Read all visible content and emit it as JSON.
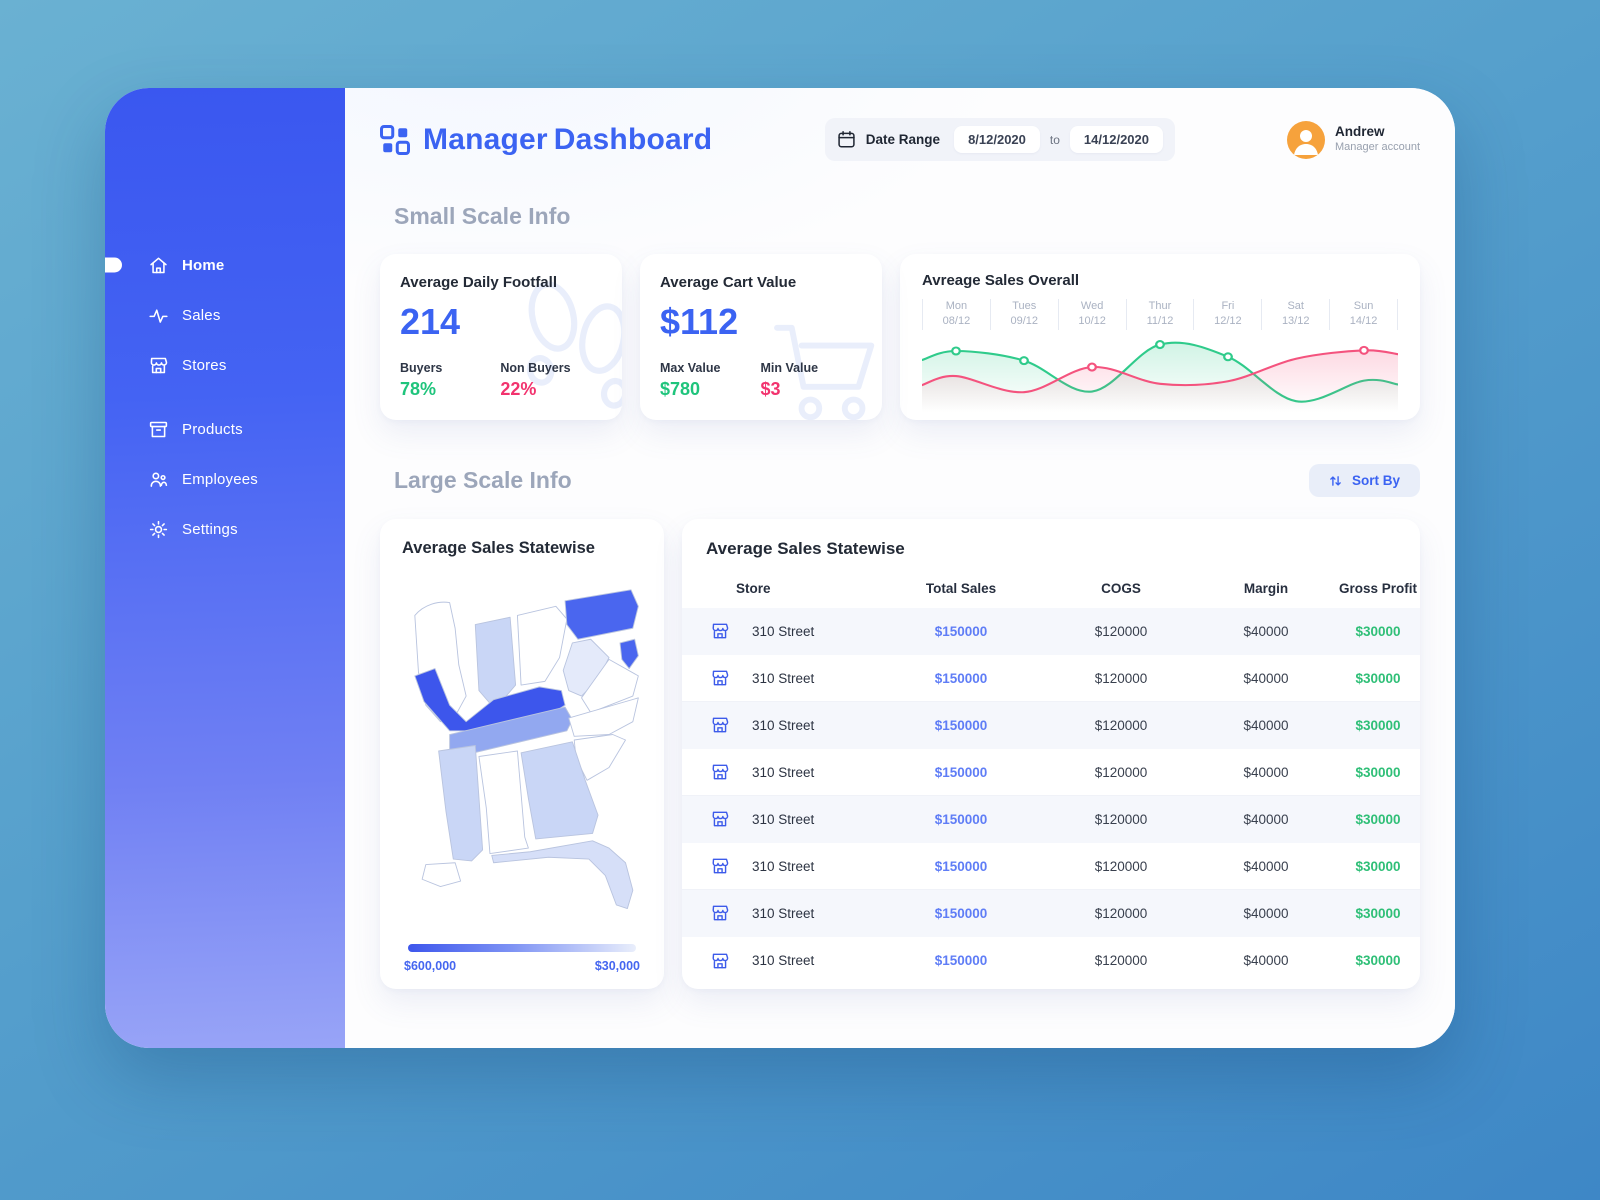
{
  "app": {
    "title_part1": "Manager",
    "title_part2": "Dashboard"
  },
  "header": {
    "date_range": {
      "label": "Date Range",
      "start": "8/12/2020",
      "separator": "to",
      "end": "14/12/2020"
    },
    "user": {
      "name": "Andrew",
      "role": "Manager account"
    }
  },
  "sidebar": {
    "items": [
      {
        "label": "Home",
        "active": true
      },
      {
        "label": "Sales",
        "active": false
      },
      {
        "label": "Stores",
        "active": false
      },
      {
        "label": "Products",
        "active": false
      },
      {
        "label": "Employees",
        "active": false
      },
      {
        "label": "Settings",
        "active": false
      }
    ]
  },
  "small_scale": {
    "title": "Small Scale Info",
    "footfall_card": {
      "title": "Average Daily Footfall",
      "value": "214",
      "buyers_label": "Buyers",
      "buyers_value": "78%",
      "non_buyers_label": "Non Buyers",
      "non_buyers_value": "22%"
    },
    "cart_card": {
      "title": "Average Cart Value",
      "value": "$112",
      "max_label": "Max Value",
      "max_value": "$780",
      "min_label": "Min Value",
      "min_value": "$3"
    }
  },
  "chart_data": {
    "type": "line",
    "title": "Avreage Sales Overall",
    "x": [
      "Mon",
      "Tues",
      "Wed",
      "Thur",
      "Fri",
      "Sat",
      "Sun"
    ],
    "x_dates": [
      "08/12",
      "09/12",
      "10/12",
      "11/12",
      "12/12",
      "13/12",
      "14/12"
    ],
    "ylim": [
      0,
      100
    ],
    "grid": false,
    "legend": "none",
    "series": [
      {
        "name": "sales-green",
        "color": "#2fcb8b",
        "values": [
          84,
          69,
          21,
          94,
          75,
          6,
          38
        ],
        "marker_indices": [
          0,
          1,
          3,
          4
        ]
      },
      {
        "name": "sales-pink",
        "color": "#f4537e",
        "values": [
          45,
          20,
          59,
          33,
          37,
          72,
          85
        ],
        "marker_indices": [
          2,
          6
        ]
      }
    ]
  },
  "large_scale": {
    "title": "Large Scale Info",
    "sort_by_label": "Sort By",
    "map_card": {
      "title": "Average Sales Statewise",
      "legend_left": "$600,000",
      "legend_right": "$30,000"
    },
    "table": {
      "title": "Average Sales Statewise",
      "columns": [
        "Store",
        "Total Sales",
        "COGS",
        "Margin",
        "Gross Profit"
      ],
      "rows": [
        {
          "store": "310 Street",
          "total_sales": "$150000",
          "cogs": "$120000",
          "margin": "$40000",
          "gross_profit": "$30000"
        },
        {
          "store": "310 Street",
          "total_sales": "$150000",
          "cogs": "$120000",
          "margin": "$40000",
          "gross_profit": "$30000"
        },
        {
          "store": "310 Street",
          "total_sales": "$150000",
          "cogs": "$120000",
          "margin": "$40000",
          "gross_profit": "$30000"
        },
        {
          "store": "310 Street",
          "total_sales": "$150000",
          "cogs": "$120000",
          "margin": "$40000",
          "gross_profit": "$30000"
        },
        {
          "store": "310 Street",
          "total_sales": "$150000",
          "cogs": "$120000",
          "margin": "$40000",
          "gross_profit": "$30000"
        },
        {
          "store": "310 Street",
          "total_sales": "$150000",
          "cogs": "$120000",
          "margin": "$40000",
          "gross_profit": "$30000"
        },
        {
          "store": "310 Street",
          "total_sales": "$150000",
          "cogs": "$120000",
          "margin": "$40000",
          "gross_profit": "$30000"
        },
        {
          "store": "310 Street",
          "total_sales": "$150000",
          "cogs": "$120000",
          "margin": "$40000",
          "gross_profit": "$30000"
        }
      ]
    }
  },
  "colors": {
    "accent_blue": "#3b63f2",
    "value_blue": "#5f7df6",
    "positive_green": "#1fc47c",
    "negative_pink": "#f2336e",
    "map_legend_dark": "#3d56ec",
    "map_legend_light": "#e9eefb",
    "avatar_orange": "#f6a23c"
  }
}
